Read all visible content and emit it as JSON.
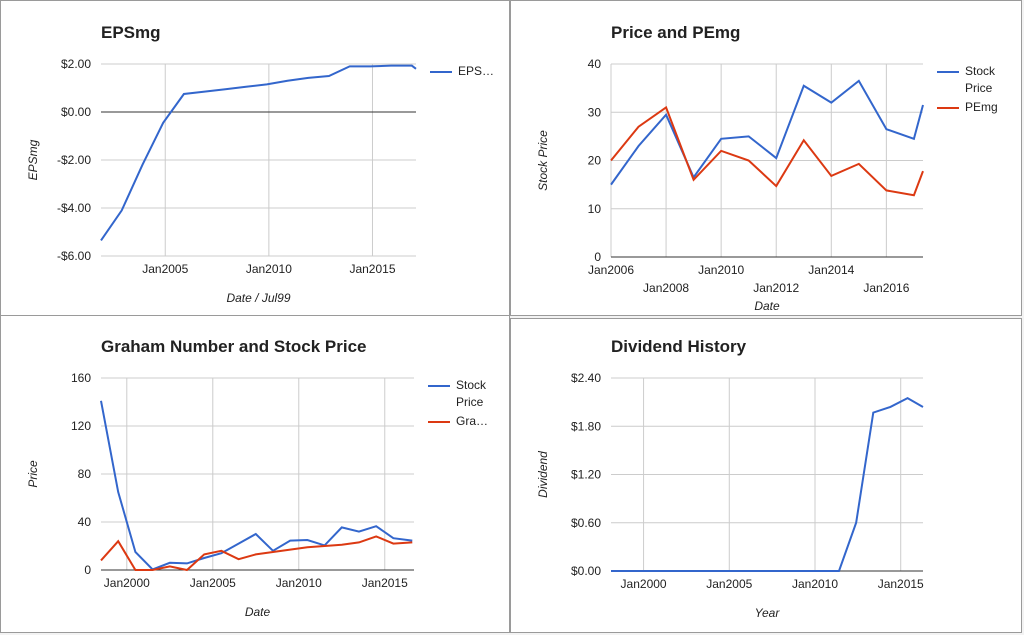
{
  "chart_data": [
    {
      "type": "line",
      "title": "EPSmg",
      "xlabel": "Date / Jul99",
      "ylabel": "EPSmg",
      "x": [
        2001.9,
        2002.9,
        2003.9,
        2004.9,
        2005.9,
        2006.9,
        2007.9,
        2008.9,
        2009.9,
        2010.9,
        2011.9,
        2012.9,
        2013.9,
        2014.9,
        2015.9,
        2016.9,
        2017.1
      ],
      "series": [
        {
          "name": "EPS…",
          "color": "#3366cc",
          "values": [
            -5.35,
            -4.1,
            -2.2,
            -0.45,
            0.75,
            0.85,
            0.95,
            1.05,
            1.15,
            1.3,
            1.42,
            1.5,
            1.9,
            1.9,
            1.93,
            1.93,
            1.8
          ]
        }
      ],
      "xlim": [
        2001.9,
        2017.1
      ],
      "xticks": [
        {
          "value": 2005,
          "label": "Jan2005"
        },
        {
          "value": 2010,
          "label": "Jan2010"
        },
        {
          "value": 2015,
          "label": "Jan2015"
        }
      ],
      "ylim": [
        -6,
        2
      ],
      "yticks": [
        {
          "value": -6,
          "label": "-$6.00"
        },
        {
          "value": -4,
          "label": "-$4.00"
        },
        {
          "value": -2,
          "label": "-$2.00"
        },
        {
          "value": 0,
          "label": "$0.00"
        },
        {
          "value": 2,
          "label": "$2.00"
        }
      ],
      "grid": true,
      "legend": "right"
    },
    {
      "type": "line",
      "title": "Price and PEmg",
      "xlabel": "Date",
      "ylabel": "Stock Price",
      "x": [
        2006,
        2007,
        2008,
        2009,
        2010,
        2011,
        2012,
        2013,
        2014,
        2015,
        2016,
        2017,
        2017.33
      ],
      "series": [
        {
          "name": "Stock Price",
          "color": "#3366cc",
          "values": [
            15,
            23,
            29.5,
            16.5,
            24.5,
            25,
            20.5,
            35.5,
            32,
            36.5,
            26.5,
            24.5,
            31.5
          ]
        },
        {
          "name": "PEmg",
          "color": "#dc3912",
          "values": [
            20,
            27,
            31,
            16,
            22,
            20,
            14.7,
            24.2,
            16.8,
            19.3,
            13.8,
            12.8,
            17.8
          ]
        }
      ],
      "xlim": [
        2006,
        2017.33
      ],
      "xticks": [
        {
          "value": 2006,
          "label": "Jan2006"
        },
        {
          "value": 2008,
          "label": "Jan2008"
        },
        {
          "value": 2010,
          "label": "Jan2010"
        },
        {
          "value": 2012,
          "label": "Jan2012"
        },
        {
          "value": 2014,
          "label": "Jan2014"
        },
        {
          "value": 2016,
          "label": "Jan2016"
        }
      ],
      "ylim": [
        0,
        40
      ],
      "yticks": [
        0,
        10,
        20,
        30,
        40
      ],
      "grid": true,
      "legend": "right"
    },
    {
      "type": "line",
      "title": "Graham Number and Stock Price",
      "xlabel": "Date",
      "ylabel": "Price",
      "x": [
        1998.5,
        1999.5,
        2000.5,
        2001.5,
        2002.5,
        2003.5,
        2004.5,
        2005.5,
        2006.5,
        2007.5,
        2008.5,
        2009.5,
        2010.5,
        2011.5,
        2012.5,
        2013.5,
        2014.5,
        2015.5,
        2016.6
      ],
      "series": [
        {
          "name": "Stock Price",
          "color": "#3366cc",
          "values": [
            141,
            65,
            15,
            0.5,
            6,
            5.5,
            10,
            14,
            22,
            30,
            16,
            24.5,
            25,
            20.5,
            35.5,
            32,
            36.5,
            26.5,
            24.5
          ]
        },
        {
          "name": "Gra…",
          "color": "#dc3912",
          "values": [
            8,
            24,
            0,
            0,
            3,
            0,
            13,
            16,
            9,
            13,
            15,
            17,
            19,
            20,
            21,
            23,
            28,
            22,
            23
          ]
        }
      ],
      "xlim": [
        1998.5,
        2016.7
      ],
      "xticks": [
        {
          "value": 2000,
          "label": "Jan2000"
        },
        {
          "value": 2005,
          "label": "Jan2005"
        },
        {
          "value": 2010,
          "label": "Jan2010"
        },
        {
          "value": 2015,
          "label": "Jan2015"
        }
      ],
      "ylim": [
        0,
        160
      ],
      "yticks": [
        0,
        40,
        80,
        120,
        160
      ],
      "grid": true,
      "legend": "right"
    },
    {
      "type": "line",
      "title": "Dividend History",
      "xlabel": "Year",
      "ylabel": "Dividend",
      "x": [
        1998.1,
        2011.4,
        2012.4,
        2013.4,
        2014.4,
        2015.4,
        2016.3
      ],
      "series": [
        {
          "name": "Dividend",
          "color": "#3366cc",
          "values": [
            0,
            0,
            0.6,
            1.97,
            2.04,
            2.15,
            2.04
          ]
        }
      ],
      "xlim": [
        1998.1,
        2016.3
      ],
      "xticks": [
        {
          "value": 2000,
          "label": "Jan2000"
        },
        {
          "value": 2005,
          "label": "Jan2005"
        },
        {
          "value": 2010,
          "label": "Jan2010"
        },
        {
          "value": 2015,
          "label": "Jan2015"
        }
      ],
      "ylim": [
        0,
        2.4
      ],
      "yticks": [
        {
          "value": 0,
          "label": "$0.00"
        },
        {
          "value": 0.6,
          "label": "$0.60"
        },
        {
          "value": 1.2,
          "label": "$1.20"
        },
        {
          "value": 1.8,
          "label": "$1.80"
        },
        {
          "value": 2.4,
          "label": "$2.40"
        }
      ],
      "grid": true,
      "legend": "none"
    }
  ]
}
